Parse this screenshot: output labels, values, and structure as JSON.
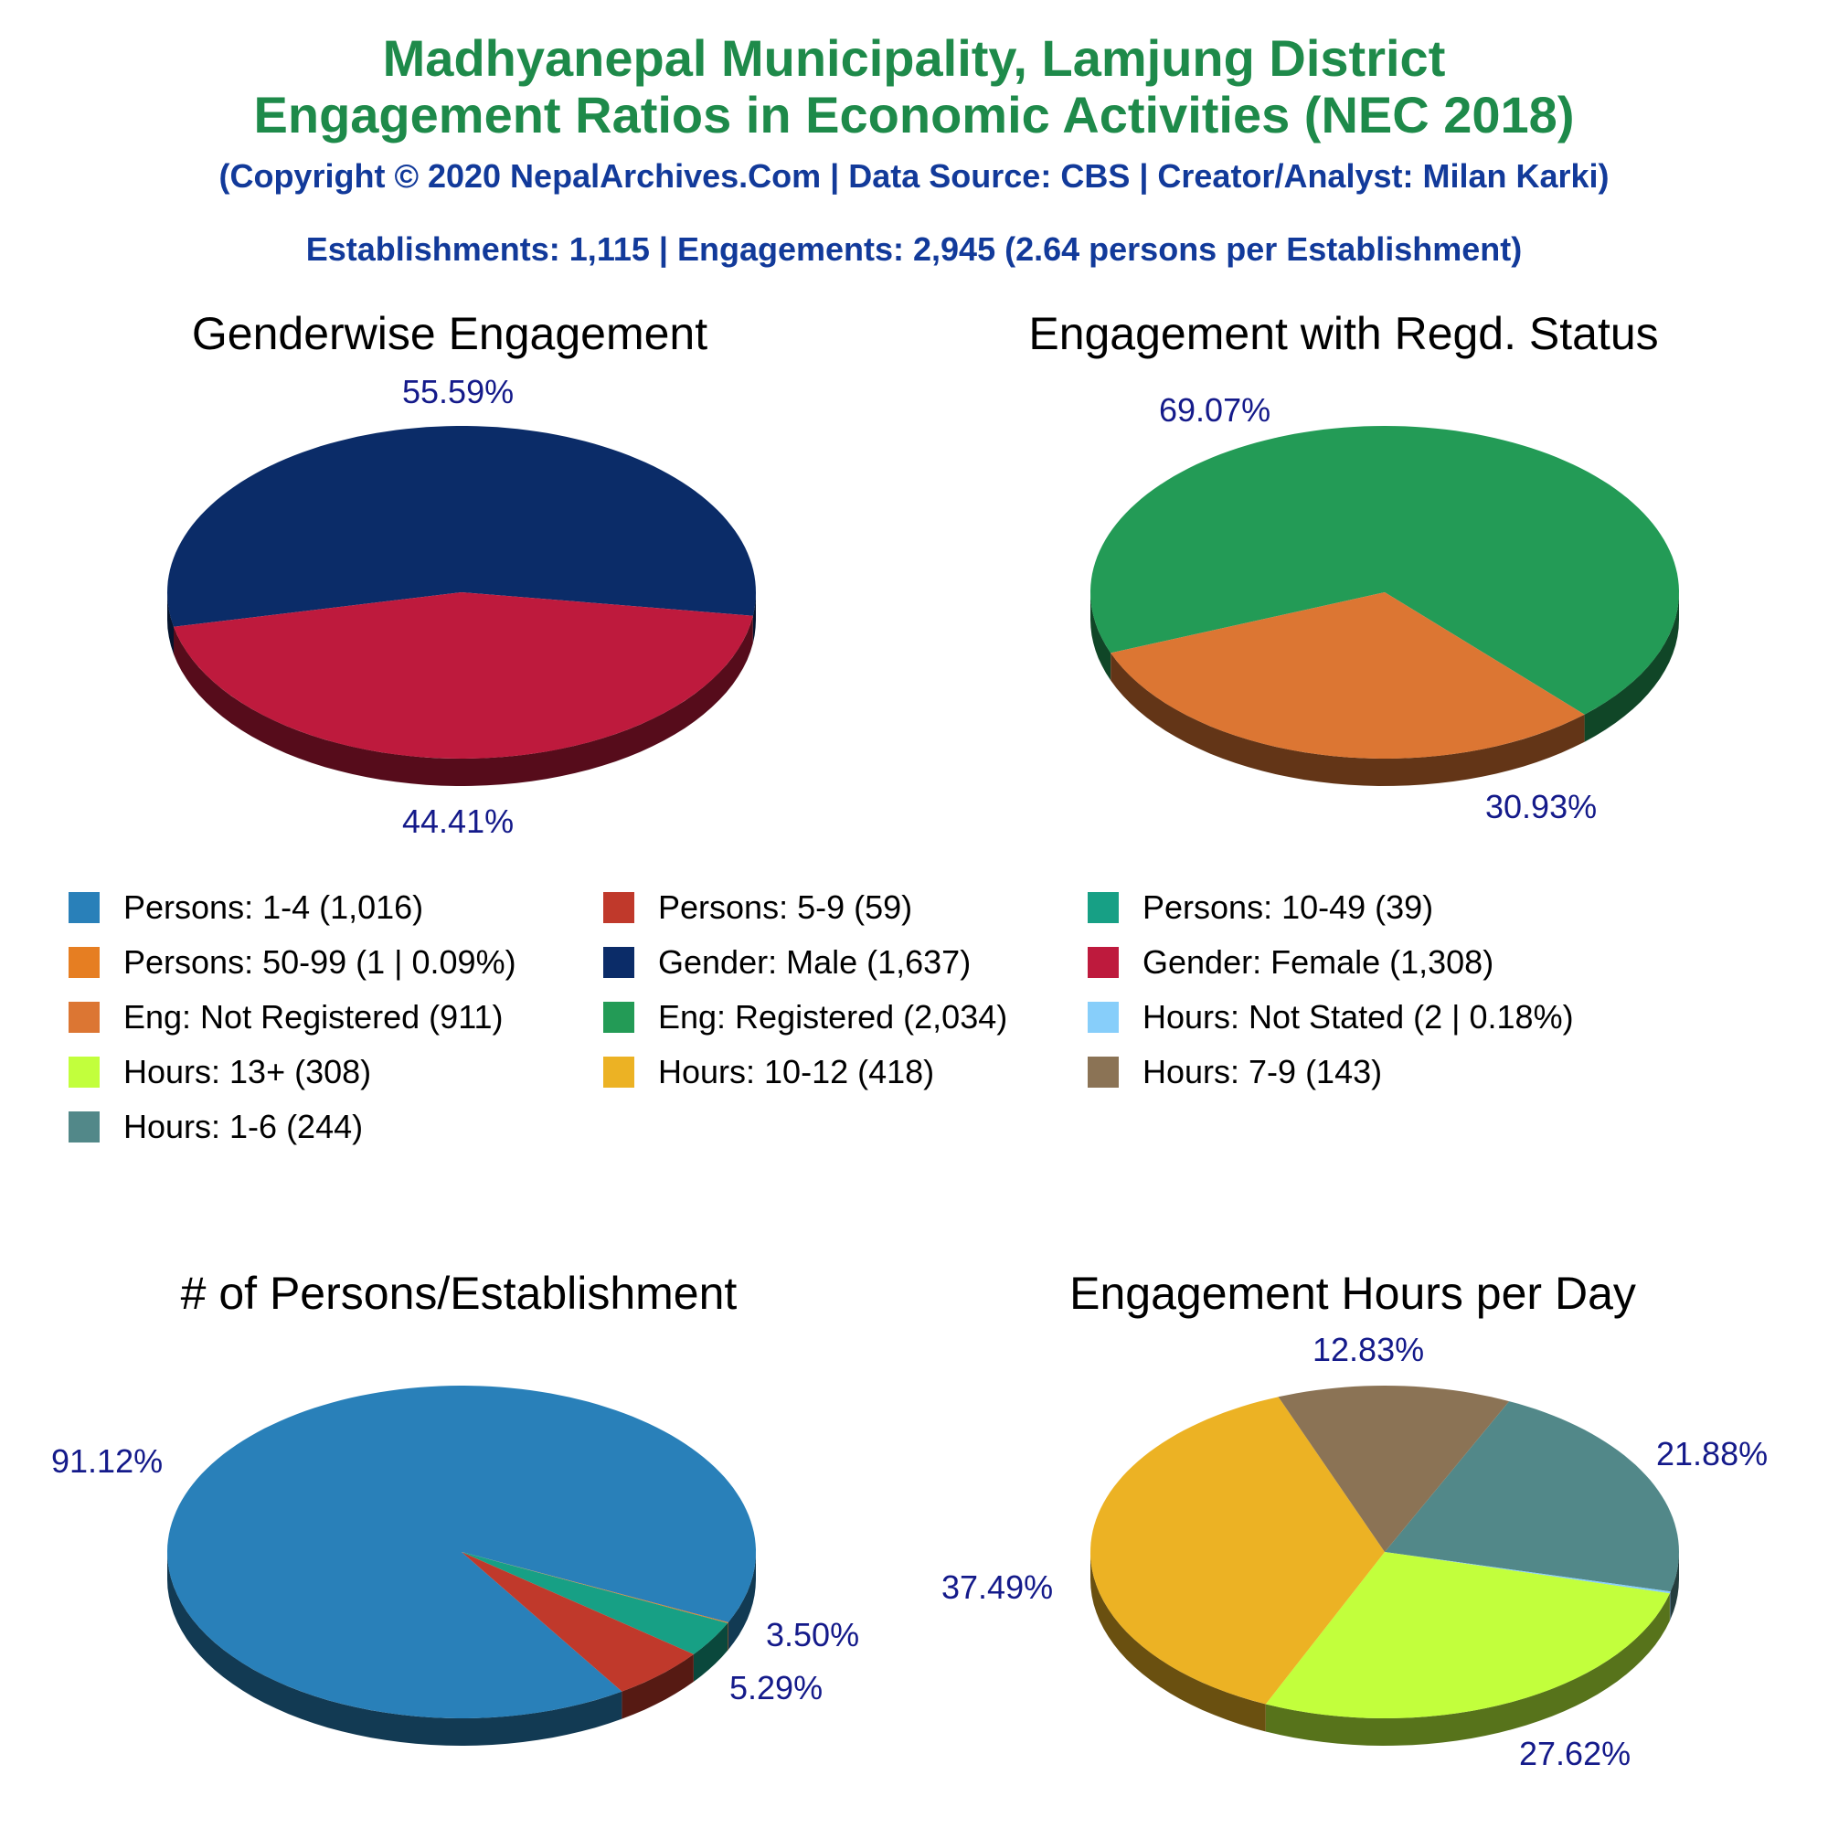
{
  "header": {
    "title_line1": "Madhyanepal Municipality, Lamjung District",
    "title_line2": "Engagement Ratios in Economic Activities (NEC 2018)",
    "copyright": "(Copyright © 2020 NepalArchives.Com | Data Source: CBS | Creator/Analyst: Milan Karki)",
    "summary": "Establishments: 1,115 | Engagements: 2,945 (2.64 persons per Establishment)"
  },
  "chart_data": [
    {
      "type": "pie",
      "title": "Genderwise Engagement",
      "slices": [
        {
          "label": "Gender: Male",
          "value": 55.59,
          "color": "#0b2c68",
          "pct_label": "55.59%"
        },
        {
          "label": "Gender: Female",
          "value": 44.41,
          "color": "#be1a3d",
          "pct_label": "44.41%"
        }
      ]
    },
    {
      "type": "pie",
      "title": "Engagement with Regd. Status",
      "slices": [
        {
          "label": "Eng: Registered",
          "value": 69.07,
          "color": "#239b56",
          "pct_label": "69.07%"
        },
        {
          "label": "Eng: Not Registered",
          "value": 30.93,
          "color": "#dc7633",
          "pct_label": "30.93%"
        }
      ]
    },
    {
      "type": "pie",
      "title": "# of Persons/Establishment",
      "slices": [
        {
          "label": "Persons: 1-4",
          "value": 91.12,
          "color": "#2980b9",
          "pct_label": "91.12%"
        },
        {
          "label": "Persons: 50-99",
          "value": 0.09,
          "color": "#e67e22",
          "pct_label": ""
        },
        {
          "label": "Persons: 10-49",
          "value": 3.5,
          "color": "#17a085",
          "pct_label": "3.50%"
        },
        {
          "label": "Persons: 5-9",
          "value": 5.29,
          "color": "#c0392b",
          "pct_label": "5.29%"
        }
      ]
    },
    {
      "type": "pie",
      "title": "Engagement Hours per Day",
      "slices": [
        {
          "label": "Hours: 1-6",
          "value": 21.88,
          "color": "#528889",
          "pct_label": "21.88%"
        },
        {
          "label": "Hours: Not Stated",
          "value": 0.18,
          "color": "#87cefa",
          "pct_label": ""
        },
        {
          "label": "Hours: 13+",
          "value": 27.62,
          "color": "#c2ff3c",
          "pct_label": "27.62%"
        },
        {
          "label": "Hours: 10-12",
          "value": 37.49,
          "color": "#ecb224",
          "pct_label": "37.49%"
        },
        {
          "label": "Hours: 7-9",
          "value": 12.83,
          "color": "#8b7355",
          "pct_label": "12.83%"
        }
      ]
    }
  ],
  "legend": [
    {
      "text": "Persons: 1-4 (1,016)",
      "color": "#2980b9"
    },
    {
      "text": "Persons: 5-9 (59)",
      "color": "#c0392b"
    },
    {
      "text": "Persons: 10-49 (39)",
      "color": "#17a085"
    },
    {
      "text": "Persons: 50-99 (1 | 0.09%)",
      "color": "#e67e22"
    },
    {
      "text": "Gender: Male (1,637)",
      "color": "#0b2c68"
    },
    {
      "text": "Gender: Female (1,308)",
      "color": "#be1a3d"
    },
    {
      "text": "Eng: Not Registered (911)",
      "color": "#dc7633"
    },
    {
      "text": "Eng: Registered (2,034)",
      "color": "#239b56"
    },
    {
      "text": "Hours: Not Stated (2 | 0.18%)",
      "color": "#87cefa"
    },
    {
      "text": "Hours: 13+ (308)",
      "color": "#c2ff3c"
    },
    {
      "text": "Hours: 10-12 (418)",
      "color": "#ecb224"
    },
    {
      "text": "Hours: 7-9 (143)",
      "color": "#8b7355"
    },
    {
      "text": "Hours: 1-6 (244)",
      "color": "#528889"
    }
  ]
}
